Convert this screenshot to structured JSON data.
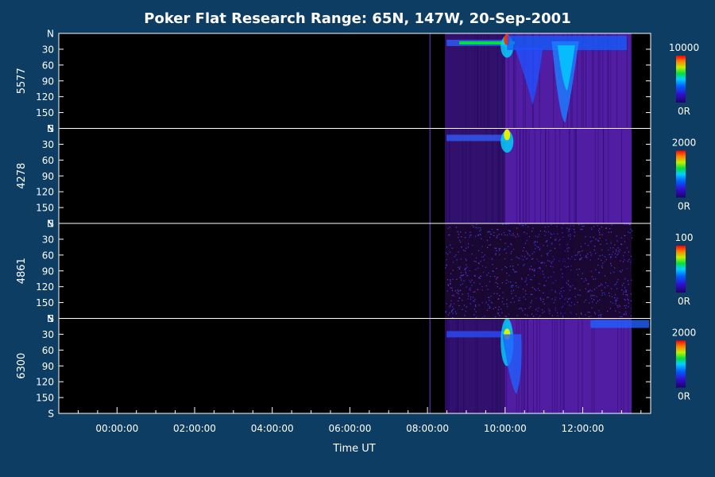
{
  "chart_data": {
    "type": "heatmap",
    "title": "Poker Flat Research Range: 65N, 147W, 20-Sep-2001",
    "xlabel": "Time UT",
    "x_unit": "hours UT",
    "xlim": [
      -1.5,
      13.75
    ],
    "x_ticks": [
      {
        "value": 0,
        "label": "00:00:00"
      },
      {
        "value": 2,
        "label": "02:00:00"
      },
      {
        "value": 4,
        "label": "04:00:00"
      },
      {
        "value": 6,
        "label": "06:00:00"
      },
      {
        "value": 8,
        "label": "08:00:00"
      },
      {
        "value": 10,
        "label": "10:00:00"
      },
      {
        "value": 12,
        "label": "12:00:00"
      }
    ],
    "y_ticks": [
      {
        "value": 0,
        "label": "N"
      },
      {
        "value": 30,
        "label": "30"
      },
      {
        "value": 60,
        "label": "60"
      },
      {
        "value": 90,
        "label": "90"
      },
      {
        "value": 120,
        "label": "120"
      },
      {
        "value": 150,
        "label": "150"
      },
      {
        "value": 180,
        "label": "S"
      }
    ],
    "ylim": [
      0,
      180
    ],
    "data_start_hour": 8.45,
    "panels": [
      {
        "name": "5577",
        "scale_max": "10000",
        "scale_min": "0R"
      },
      {
        "name": "4278",
        "scale_max": "2000",
        "scale_min": "0R"
      },
      {
        "name": "4861",
        "scale_max": "100",
        "scale_min": "0R"
      },
      {
        "name": "6300",
        "scale_max": "2000",
        "scale_min": "0R"
      }
    ],
    "colormap": [
      "#000000",
      "#3a0060",
      "#4a0aa0",
      "#1a30ff",
      "#00c8ff",
      "#00e060",
      "#d8f000",
      "#ff8000",
      "#ff0000"
    ],
    "grid": false
  }
}
